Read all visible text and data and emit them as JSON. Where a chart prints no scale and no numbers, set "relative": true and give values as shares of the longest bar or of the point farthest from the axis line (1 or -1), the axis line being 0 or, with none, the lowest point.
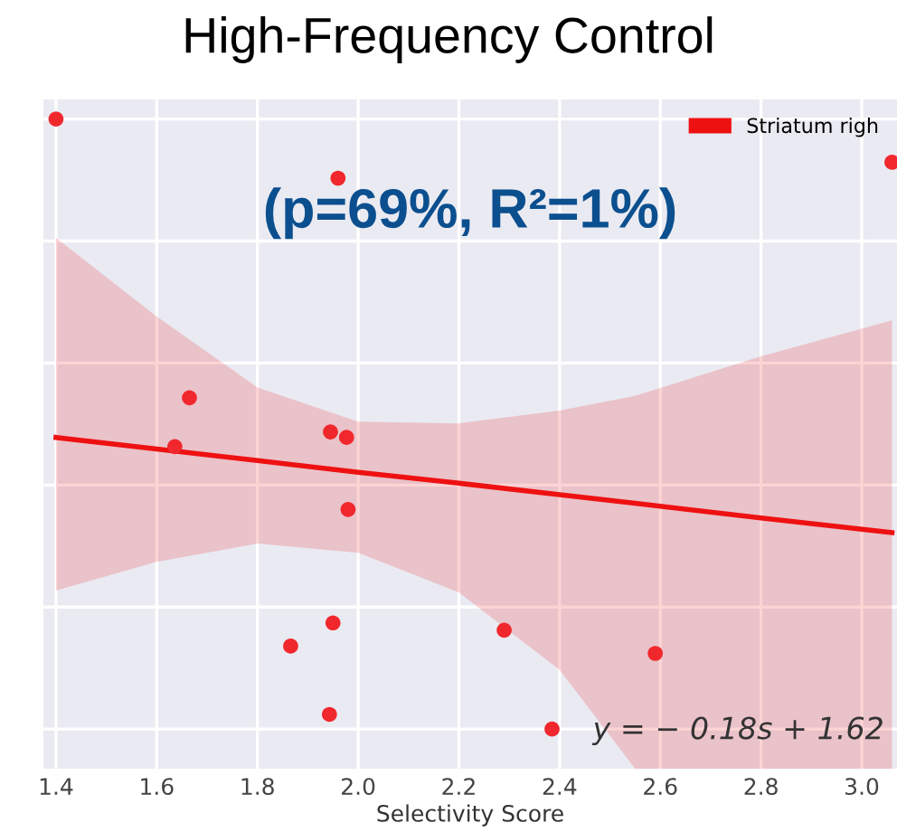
{
  "chart_data": {
    "type": "scatter",
    "title": "High-Frequency Control",
    "xlabel": "Selectivity Score",
    "relative": true,
    "annotations": [
      "(p=69%, R²=1%)",
      "y = − 0.18s + 1.62"
    ],
    "xlim": [
      1.375,
      3.07
    ],
    "xticks": [
      1.4,
      1.6,
      1.8,
      {
        "value": 2,
        "label": "2.0"
      },
      2.2,
      2.4,
      2.6,
      2.8,
      {
        "value": 3,
        "label": "3.0"
      }
    ],
    "grid": true,
    "legend": "top right",
    "tick_labels": "x",
    "series": [
      {
        "color": "#f0282d",
        "x": [
          1.4,
          1.96,
          3.06,
          1.665,
          1.636,
          1.945,
          1.977,
          1.98,
          1.866,
          1.95,
          1.943,
          2.29,
          2.385,
          2.59
        ],
        "values": [
          1.0,
          0.903,
          0.929,
          0.543,
          0.463,
          0.487,
          0.478,
          0.36,
          0.136,
          0.174,
          0.024,
          0.162,
          0,
          0.124
        ]
      },
      {
        "type": "line",
        "name": "Striatum righ",
        "color": "#ee1111",
        "x": [
          1.4,
          1.6,
          1.8,
          2.0,
          2.2,
          2.4,
          2.55,
          2.8,
          3.06
        ],
        "values": [
          0.478,
          0.459,
          0.44,
          0.421,
          0.403,
          0.384,
          0.37,
          0.346,
          0.322
        ],
        "upper": [
          0.805,
          0.676,
          0.56,
          0.504,
          0.501,
          0.522,
          0.546,
          0.611,
          0.67
        ],
        "lower": [
          0.227,
          0.274,
          0.304,
          0.289,
          0.224,
          0.097,
          -0.065,
          -0.065,
          -0.065
        ]
      }
    ]
  }
}
